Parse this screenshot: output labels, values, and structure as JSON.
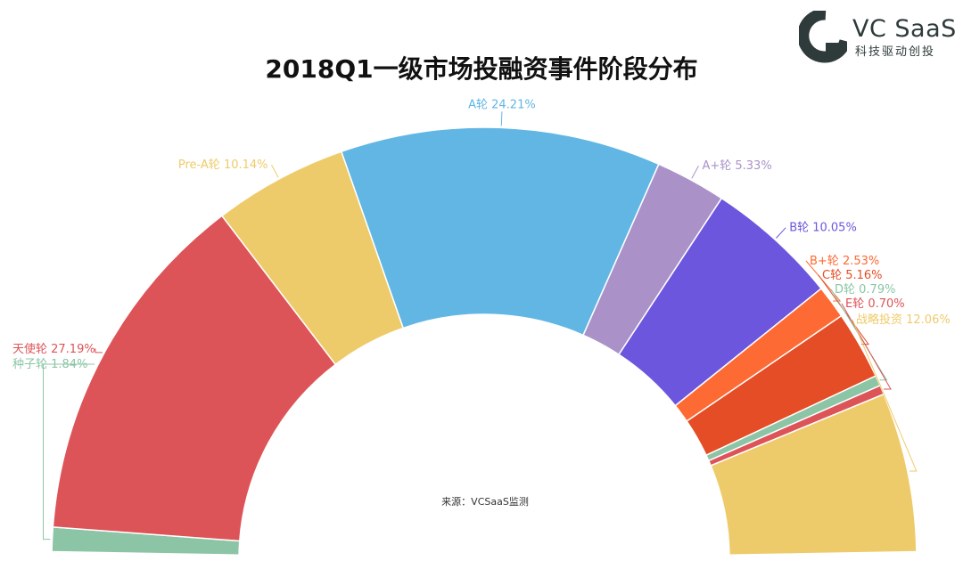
{
  "brand": {
    "name": "VC SaaS",
    "tagline": "科技驱动创投"
  },
  "chart_data": {
    "type": "pie",
    "variant": "half-donut",
    "title": "2018Q1一级市场投融资事件阶段分布",
    "source_note": "来源：VCSaaS监测",
    "slices": [
      {
        "label": "种子轮",
        "value": 1.84,
        "value_text": "1.84%",
        "color": "#8cc5a5"
      },
      {
        "label": "天使轮",
        "value": 27.19,
        "value_text": "27.19%",
        "color": "#dd5458"
      },
      {
        "label": "Pre-A轮",
        "value": 10.14,
        "value_text": "10.14%",
        "color": "#eecb6a"
      },
      {
        "label": "A轮",
        "value": 24.21,
        "value_text": "24.21%",
        "color": "#61b6e4"
      },
      {
        "label": "A+轮",
        "value": 5.33,
        "value_text": "5.33%",
        "color": "#aa92c8"
      },
      {
        "label": "B轮",
        "value": 10.05,
        "value_text": "10.05%",
        "color": "#6c56dd"
      },
      {
        "label": "B+轮",
        "value": 2.53,
        "value_text": "2.53%",
        "color": "#fe6a33"
      },
      {
        "label": "C轮",
        "value": 5.16,
        "value_text": "5.16%",
        "color": "#e44d26"
      },
      {
        "label": "D轮",
        "value": 0.79,
        "value_text": "0.79%",
        "color": "#8cc5a5"
      },
      {
        "label": "E轮",
        "value": 0.7,
        "value_text": "0.70%",
        "color": "#dd5458"
      },
      {
        "label": "战略投资",
        "value": 12.06,
        "value_text": "12.06%",
        "color": "#eecb6a"
      }
    ]
  }
}
